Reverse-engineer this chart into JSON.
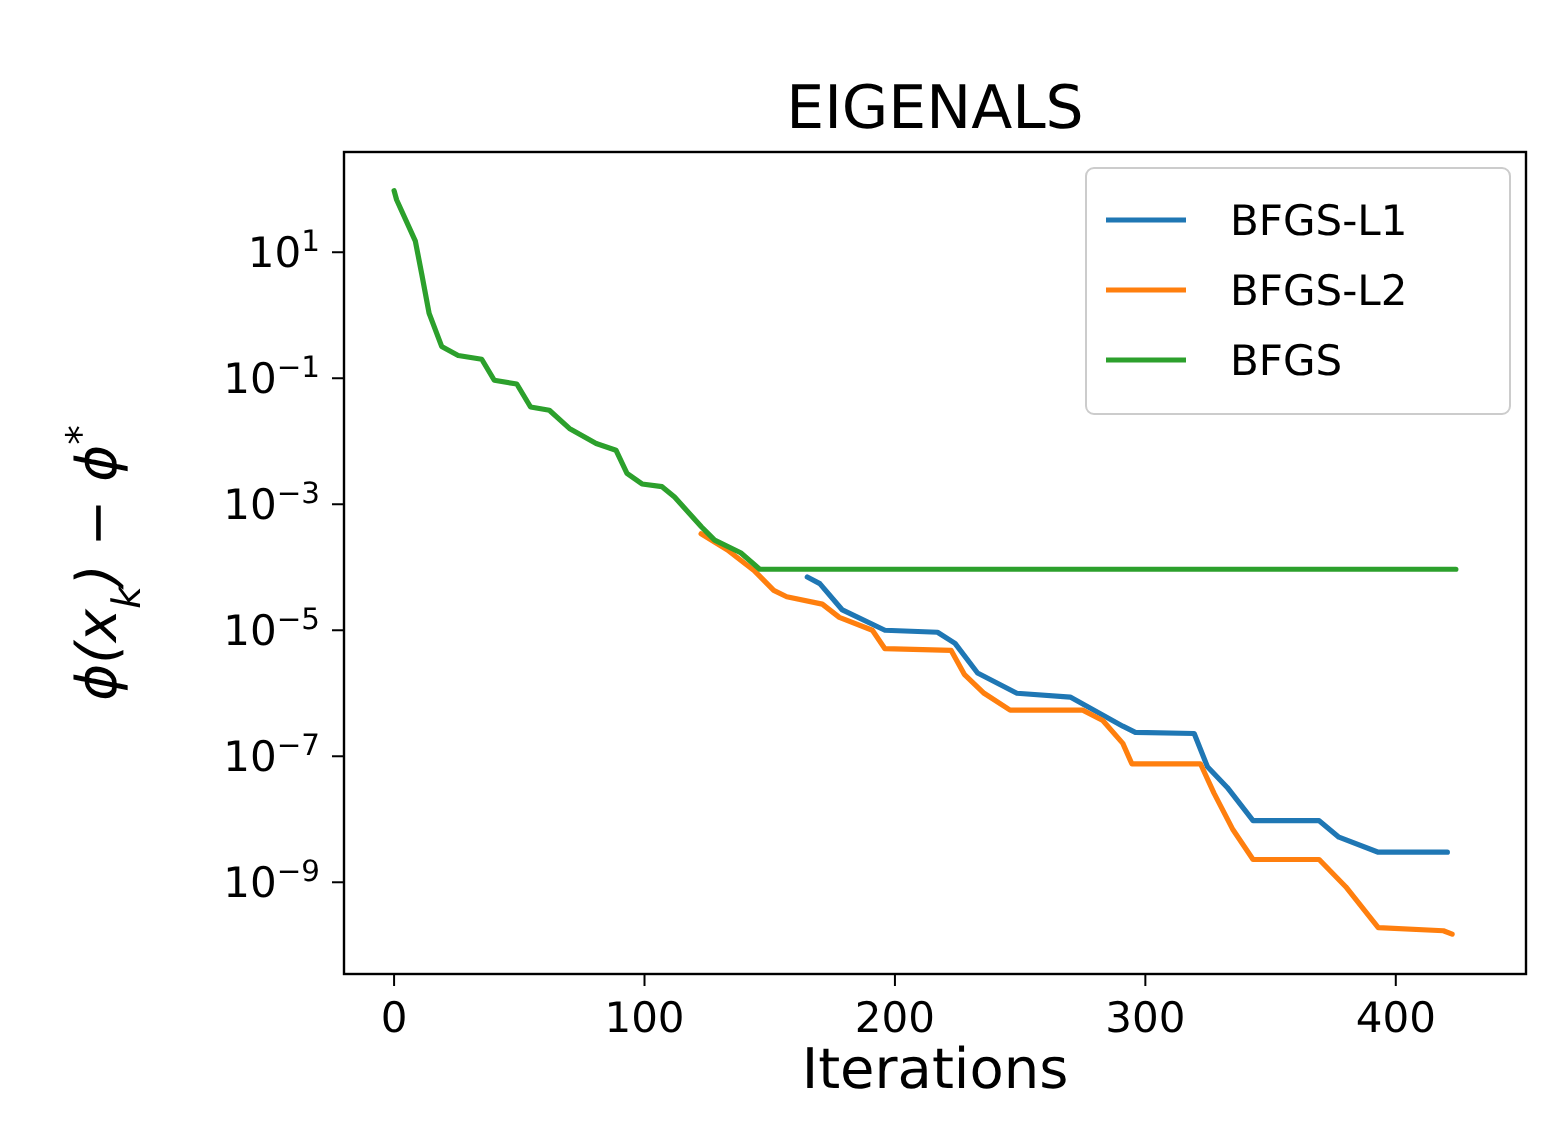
{
  "chart_data": {
    "type": "line",
    "title": "EIGENALS",
    "xlabel": "Iterations",
    "ylabel": "ϕ(x$_{k}$) − ϕ$^{*}$",
    "log": "y",
    "xlim": [
      -20,
      452
    ],
    "ylim": [
      3.5e-11,
      390
    ],
    "xticks": [
      0,
      100,
      200,
      300,
      400
    ],
    "yticks": [
      {
        "value": 10,
        "label": "10$^{1}$"
      },
      {
        "value": 0.1,
        "label": "10$^{−1}$"
      },
      {
        "value": 0.001,
        "label": "10$^{−3}$"
      },
      {
        "value": 1e-05,
        "label": "10$^{−5}$"
      },
      {
        "value": 1e-07,
        "label": "10$^{−7}$"
      },
      {
        "value": 1e-09,
        "label": "10$^{−9}$"
      }
    ],
    "grid": false,
    "legend": "top right",
    "marker": "none",
    "line_style": "solid",
    "series": [
      {
        "name": "BFGS-L1",
        "color": "#1f77b4",
        "x": [
          165,
          170,
          179,
          196,
          217,
          224,
          233,
          248.7,
          270,
          291,
          296,
          319.5,
          324.8,
          332.7,
          343,
          369.4,
          377.3,
          393,
          420.6
        ],
        "values": [
          7e-05,
          5.5e-05,
          2.1e-05,
          1e-05,
          9.3e-06,
          6.2e-06,
          2.1e-06,
          1e-06,
          8.7e-07,
          3e-07,
          2.4e-07,
          2.3e-07,
          6.8e-08,
          3.2e-08,
          9.5e-09,
          9.5e-09,
          5.2e-09,
          3e-09,
          3e-09
        ]
      },
      {
        "name": "BFGS-L2",
        "color": "#ff7f0e",
        "x": [
          122.6,
          133,
          143.7,
          151.6,
          156.8,
          171,
          177.8,
          191,
          196,
          222.4,
          227.7,
          235.6,
          246,
          275,
          283,
          291,
          294.6,
          322,
          327.4,
          335,
          343,
          369.4,
          380,
          393,
          419,
          422.5
        ],
        "values": [
          0.00034,
          0.00019,
          8.9e-05,
          4.3e-05,
          3.4e-05,
          2.6e-05,
          1.6e-05,
          1e-05,
          5.1e-06,
          4.8e-06,
          2e-06,
          1e-06,
          5.4e-07,
          5.4e-07,
          3.7e-07,
          1.6e-07,
          7.6e-08,
          7.6e-08,
          2.6e-08,
          6.8e-09,
          2.3e-09,
          2.3e-09,
          8.5e-10,
          1.9e-10,
          1.7e-10,
          1.5e-10
        ]
      },
      {
        "name": "BFGS",
        "color": "#2ca02c",
        "x": [
          0,
          1,
          8.5,
          11,
          14,
          19,
          25.6,
          35,
          40,
          49,
          54.5,
          62,
          70,
          80.7,
          88.6,
          93,
          99,
          107,
          112,
          122.7,
          128,
          138.4,
          146,
          424
        ],
        "values": [
          95,
          68,
          15,
          4.6,
          1.07,
          0.32,
          0.23,
          0.2,
          0.093,
          0.081,
          0.035,
          0.031,
          0.016,
          0.0092,
          0.0072,
          0.0031,
          0.0021,
          0.0019,
          0.0013,
          0.00044,
          0.00027,
          0.00017,
          9.3e-05,
          9.3e-05
        ]
      }
    ]
  }
}
